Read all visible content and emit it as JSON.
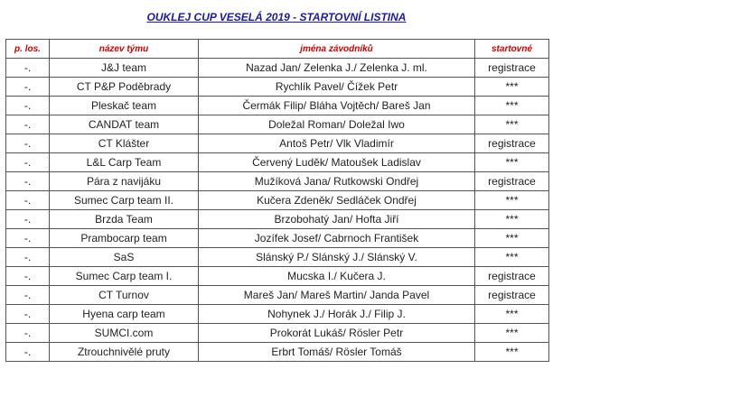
{
  "title": "OUKLEJ CUP VESELÁ 2019 - STARTOVNÍ LISTINA",
  "table": {
    "header": [
      "p. los.",
      "název týmu",
      "jména závodníků",
      "startovné"
    ],
    "rows": [
      [
        "-.",
        "J&J team",
        "Nazad Jan/ Zelenka J./ Zelenka J. ml.",
        "registrace"
      ],
      [
        "-.",
        "CT P&P Poděbrady",
        "Rychlík Pavel/ Čížek Petr",
        "***"
      ],
      [
        "-.",
        "Pleskač team",
        "Čermák Filip/ Bláha Vojtěch/ Bareš Jan",
        "***"
      ],
      [
        "-.",
        "CANDAT team",
        "Doležal Roman/ Doležal Iwo",
        "***"
      ],
      [
        "-.",
        "CT Klášter",
        "Antoš Petr/ Vlk Vladimír",
        "registrace"
      ],
      [
        "-.",
        "L&L Carp Team",
        "Červený Luděk/ Matoušek Ladislav",
        "***"
      ],
      [
        "-.",
        "Pára z navijáku",
        "Mužíková Jana/ Rutkowski Ondřej",
        "registrace"
      ],
      [
        "-.",
        "Sumec Carp team II.",
        "Kučera Zdeněk/ Sedláček Ondřej",
        "***"
      ],
      [
        "-.",
        "Brzda Team",
        "Brzobohatý Jan/ Hofta Jiří",
        "***"
      ],
      [
        "-.",
        "Prambocarp team",
        "Jozífek Josef/ Cabrnoch František",
        "***"
      ],
      [
        "-.",
        "SaS",
        "Slánský P./ Slánský J./ Slánský V.",
        "***"
      ],
      [
        "-.",
        "Sumec Carp team I.",
        "Mucska I./ Kučera J.",
        "registrace"
      ],
      [
        "-.",
        "CT Turnov",
        "Mareš Jan/ Mareš Martin/ Janda Pavel",
        "registrace"
      ],
      [
        "-.",
        "Hyena carp team",
        "Nohynek J./ Horák J./ Filip J.",
        "***"
      ],
      [
        "-.",
        "SUMCI.com",
        "Prokorát Lukáš/ Rösler Petr",
        "***"
      ],
      [
        "-.",
        "Ztrouchnivělé pruty",
        "Erbrt Tomáš/  Rösler Tomáš",
        "***"
      ]
    ]
  }
}
